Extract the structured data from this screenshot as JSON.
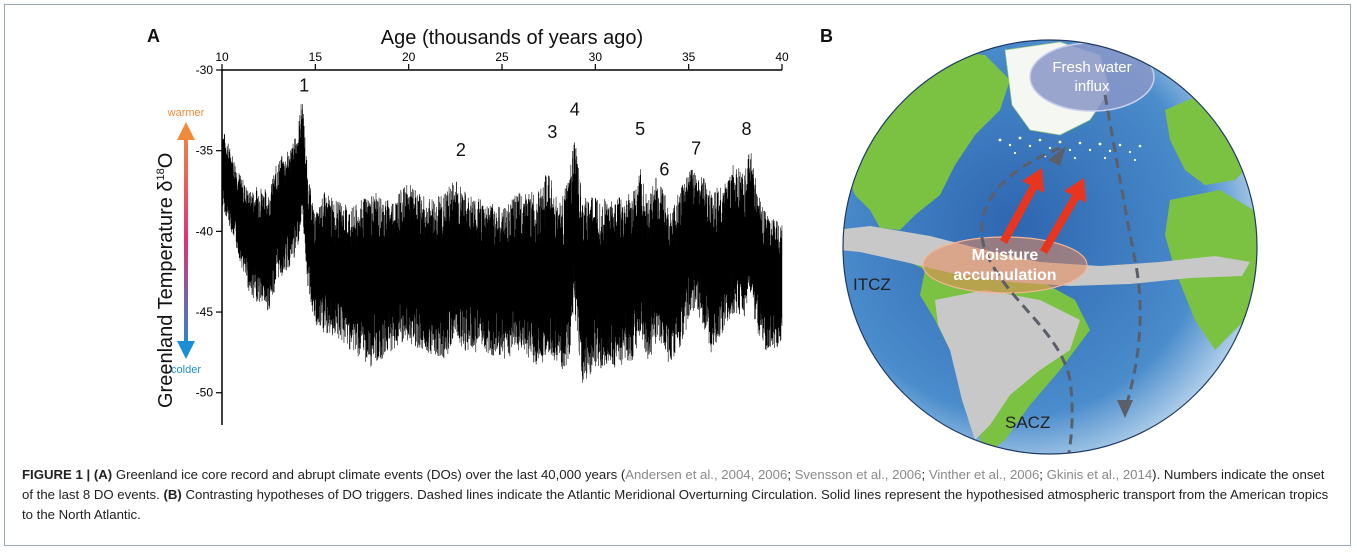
{
  "panels": {
    "a_label": "A",
    "b_label": "B"
  },
  "chart_data": {
    "type": "line",
    "title": "",
    "xlabel": "Age (thousands of years ago)",
    "ylabel": "Greenland Temperature δ18O",
    "ylabel_main": "Greenland Temperature δ",
    "ylabel_sup": "18",
    "ylabel_tail": "O",
    "xlim": [
      10,
      40
    ],
    "ylim": [
      -30,
      -52
    ],
    "x_ticks": [
      10,
      15,
      20,
      25,
      30,
      35,
      40
    ],
    "y_ticks": [
      -30,
      -35,
      -40,
      -45,
      -50
    ],
    "warmer_label": "warmer",
    "colder_label": "colder",
    "colors": {
      "warm": "#f08a3c",
      "mid": "#e0307a",
      "cold": "#1b8fd6",
      "trace": "#000000"
    },
    "series": [
      {
        "x": [
          10.0,
          10.5,
          11.0,
          11.5,
          12.0,
          12.5,
          13.0,
          13.5,
          14.0,
          14.3,
          14.6,
          15.0,
          15.5,
          16.0,
          17.0,
          18.0,
          19.0,
          20.0,
          21.0,
          22.0,
          22.5,
          23.0,
          24.0,
          25.0,
          26.0,
          27.0,
          27.5,
          27.8,
          28.2,
          28.6,
          28.9,
          29.3,
          30.0,
          31.0,
          32.0,
          32.4,
          32.8,
          33.2,
          33.6,
          34.0,
          34.6,
          35.2,
          35.7,
          36.2,
          37.0,
          37.5,
          38.0,
          38.3,
          38.7,
          39.2,
          40.0
        ],
        "upper": [
          -33.5,
          -35.0,
          -36.5,
          -37.5,
          -37.0,
          -37.5,
          -35.5,
          -35.0,
          -34.0,
          -31.5,
          -36.5,
          -39.0,
          -37.5,
          -38.0,
          -38.5,
          -37.5,
          -38.0,
          -37.0,
          -38.0,
          -37.5,
          -36.5,
          -37.5,
          -38.0,
          -38.5,
          -37.5,
          -37.5,
          -36.0,
          -37.5,
          -38.0,
          -36.5,
          -34.0,
          -38.0,
          -37.5,
          -38.0,
          -37.5,
          -36.0,
          -38.0,
          -36.5,
          -37.0,
          -39.0,
          -37.0,
          -36.0,
          -36.5,
          -37.5,
          -37.0,
          -35.5,
          -36.5,
          -34.5,
          -37.5,
          -39.0,
          -39.5
        ],
        "lower": [
          -38.5,
          -40.0,
          -42.0,
          -44.0,
          -44.5,
          -45.0,
          -43.0,
          -42.5,
          -41.5,
          -39.0,
          -43.5,
          -46.0,
          -46.5,
          -46.5,
          -47.5,
          -48.5,
          -47.5,
          -47.0,
          -47.5,
          -48.0,
          -46.5,
          -47.5,
          -47.5,
          -48.0,
          -47.5,
          -48.5,
          -47.5,
          -48.0,
          -49.0,
          -48.0,
          -45.0,
          -49.5,
          -48.5,
          -48.5,
          -48.0,
          -46.5,
          -48.5,
          -47.0,
          -47.0,
          -48.5,
          -47.0,
          -45.0,
          -45.5,
          -47.5,
          -46.0,
          -45.0,
          -45.5,
          -44.0,
          -46.5,
          -47.5,
          -47.0
        ]
      }
    ],
    "annotations": [
      {
        "text": "1",
        "x": 14.4,
        "y": -31.7
      },
      {
        "text": "2",
        "x": 22.8,
        "y": -35.7
      },
      {
        "text": "3",
        "x": 27.7,
        "y": -34.6
      },
      {
        "text": "4",
        "x": 28.9,
        "y": -33.2
      },
      {
        "text": "5",
        "x": 32.4,
        "y": -34.4
      },
      {
        "text": "6",
        "x": 33.7,
        "y": -36.9
      },
      {
        "text": "7",
        "x": 35.4,
        "y": -35.6
      },
      {
        "text": "8",
        "x": 38.1,
        "y": -34.4
      }
    ]
  },
  "map": {
    "fresh_water_label_line1": "Fresh water",
    "fresh_water_label_line2": "influx",
    "moisture_label_line1": "Moisture",
    "moisture_label_line2": "accumulation",
    "itcz_label": "ITCZ",
    "sacz_label": "SACZ",
    "colors": {
      "ocean": "#3c78b8",
      "land": "#7cc242",
      "convergence": "#c8c8c8",
      "arrow": "#e8361e",
      "moisture": "#e89a6a",
      "fresh": "#8a96c8"
    }
  },
  "caption": {
    "fig_label": "FIGURE 1 | ",
    "a_tag": "(A)",
    "part1": " Greenland ice core record and abrupt climate events (DOs) over the last 40,000 years (",
    "ref1": "Andersen et al., 2004, 2006",
    "sep1": "; ",
    "ref2": "Svensson et al., 2006",
    "sep2": "; ",
    "ref3": "Vinther et al., 2006",
    "sep3": "; ",
    "ref4": "Gkinis et al., 2014",
    "part2": "). Numbers indicate the onset of the last 8 DO events. ",
    "b_tag": "(B)",
    "part3": " Contrasting hypotheses of DO triggers. Dashed lines indicate the Atlantic Meridional Overturning Circulation. Solid lines represent the hypothesised atmospheric transport from the American tropics to the North Atlantic."
  }
}
